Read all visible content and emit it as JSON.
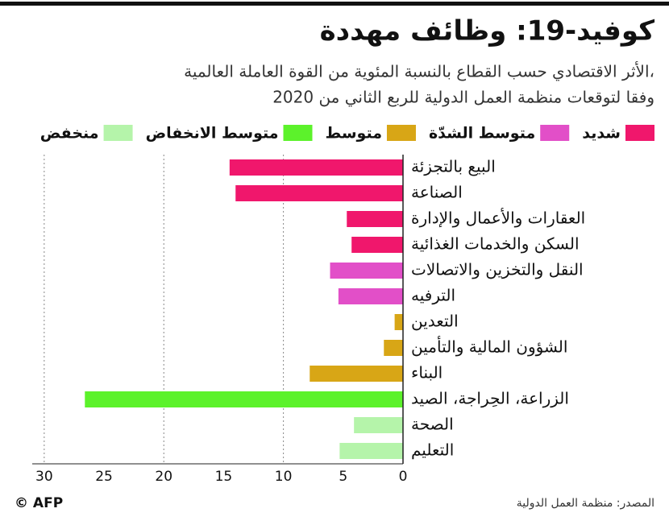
{
  "chart_data": {
    "type": "bar",
    "orientation": "horizontal",
    "title": "كوفيد-19: وظائف مهددة",
    "subtitle": [
      "الأثر الاقتصادي حسب القطاع بالنسبة المئوية من القوة العاملة العالمية،",
      "وفقا لتوقعات منظمة العمل الدولية للربع الثاني من 2020"
    ],
    "categories": [
      "البيع بالتجزئة",
      "الصناعة",
      "العقارات والأعمال والإدارة",
      "السكن والخدمات الغذائية",
      "النقل والتخزين والاتصالات",
      "الترفيه",
      "التعدين",
      "الشؤون المالية والتأمين",
      "البناء",
      "الزراعة، الحِراجة، الصيد",
      "الصحة",
      "التعليم"
    ],
    "series": [
      {
        "name": "شديد",
        "color": "#f0176c",
        "values": [
          14.5,
          14.0,
          4.7,
          4.3,
          null,
          null,
          null,
          null,
          null,
          null,
          null,
          null
        ]
      },
      {
        "name": "متوسط الشدّة",
        "color": "#e24fc8",
        "values": [
          null,
          null,
          null,
          null,
          6.1,
          5.4,
          null,
          null,
          null,
          null,
          null,
          null
        ]
      },
      {
        "name": "متوسط",
        "color": "#d8a616",
        "values": [
          null,
          null,
          null,
          null,
          null,
          null,
          0.7,
          1.6,
          7.8,
          null,
          null,
          null
        ]
      },
      {
        "name": "متوسط الانخفاض",
        "color": "#5cf22b",
        "values": [
          null,
          null,
          null,
          null,
          null,
          null,
          null,
          null,
          null,
          26.6,
          null,
          null
        ]
      },
      {
        "name": "منخفض",
        "color": "#b5f4aa",
        "values": [
          null,
          null,
          null,
          null,
          null,
          null,
          null,
          null,
          null,
          null,
          4.1,
          5.3
        ]
      }
    ],
    "xlim": [
      0,
      31
    ],
    "x_reversed": true,
    "xticks": [
      0,
      5,
      10,
      15,
      20,
      25,
      30
    ],
    "grid": true,
    "source": "المصدر: منظمة العمل الدولية",
    "credit": "© AFP"
  }
}
